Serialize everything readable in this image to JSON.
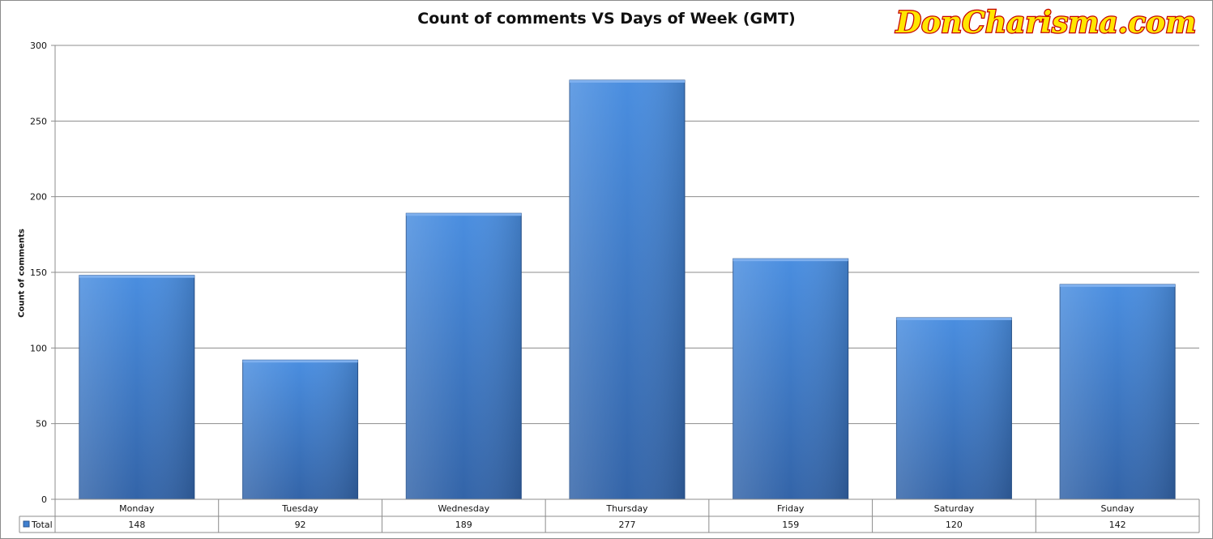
{
  "chart_data": {
    "type": "bar",
    "title": "Count of comments VS Days of Week (GMT)",
    "ylabel": "Count of comments",
    "xlabel": "",
    "categories": [
      "Monday",
      "Tuesday",
      "Wednesday",
      "Thursday",
      "Friday",
      "Saturday",
      "Sunday"
    ],
    "series": [
      {
        "name": "Total",
        "values": [
          148,
          92,
          189,
          277,
          159,
          120,
          142
        ]
      }
    ],
    "ylim": [
      0,
      300
    ],
    "yticks": [
      "0",
      "50",
      "100",
      "150",
      "200",
      "250",
      "300"
    ],
    "grid": true,
    "data_table": true,
    "bar_color": "#3f80d0"
  },
  "watermark": "DonCharisma.com"
}
